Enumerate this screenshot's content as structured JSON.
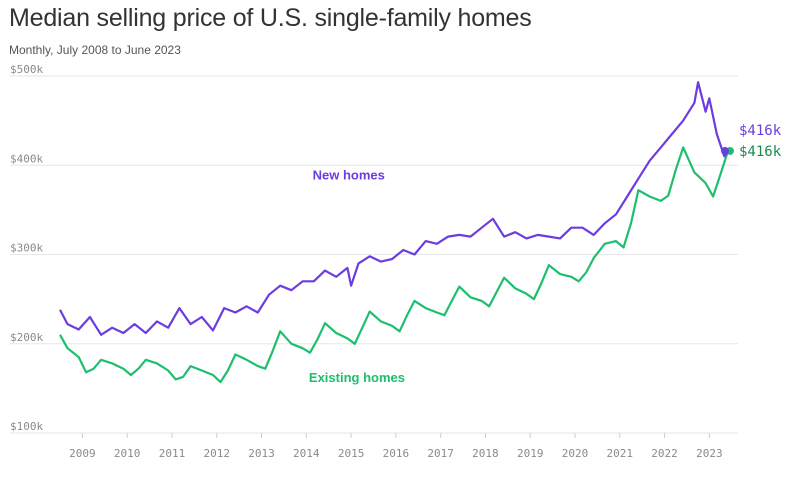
{
  "header": {
    "title": "Median selling price of U.S. single-family homes",
    "subtitle": "Monthly, July 2008 to June 2023"
  },
  "colors": {
    "new": "#6c3ce0",
    "existing": "#1dbf6e",
    "grid": "#e6e6e6",
    "tick": "#8a8a8a"
  },
  "chart_data": {
    "type": "line",
    "title": "Median selling price of U.S. single-family homes",
    "subtitle": "Monthly, July 2008 to June 2023",
    "xlabel": "",
    "ylabel": "",
    "x_range": [
      "2008-07",
      "2023-06"
    ],
    "ylim": [
      100,
      500
    ],
    "y_unit": "$k",
    "y_ticks": [
      100,
      200,
      300,
      400,
      500
    ],
    "y_tick_labels": [
      "$100k",
      "$200k",
      "$300k",
      "$400k",
      "$500k"
    ],
    "x_ticks": [
      "2009",
      "2010",
      "2011",
      "2012",
      "2013",
      "2014",
      "2015",
      "2016",
      "2017",
      "2018",
      "2019",
      "2020",
      "2021",
      "2022",
      "2023"
    ],
    "grid": true,
    "series": [
      {
        "name": "New homes",
        "key": "new",
        "end_label": "$416k",
        "points": [
          [
            "2008-07",
            238
          ],
          [
            "2008-09",
            222
          ],
          [
            "2008-12",
            216
          ],
          [
            "2009-03",
            230
          ],
          [
            "2009-06",
            210
          ],
          [
            "2009-09",
            218
          ],
          [
            "2009-12",
            212
          ],
          [
            "2010-03",
            222
          ],
          [
            "2010-06",
            212
          ],
          [
            "2010-09",
            225
          ],
          [
            "2010-12",
            218
          ],
          [
            "2011-03",
            240
          ],
          [
            "2011-06",
            222
          ],
          [
            "2011-09",
            230
          ],
          [
            "2011-12",
            215
          ],
          [
            "2012-03",
            240
          ],
          [
            "2012-06",
            235
          ],
          [
            "2012-09",
            242
          ],
          [
            "2012-12",
            235
          ],
          [
            "2013-03",
            255
          ],
          [
            "2013-06",
            265
          ],
          [
            "2013-09",
            260
          ],
          [
            "2013-12",
            270
          ],
          [
            "2014-03",
            270
          ],
          [
            "2014-06",
            282
          ],
          [
            "2014-09",
            275
          ],
          [
            "2014-12",
            285
          ],
          [
            "2015-01",
            265
          ],
          [
            "2015-03",
            290
          ],
          [
            "2015-06",
            298
          ],
          [
            "2015-09",
            292
          ],
          [
            "2015-12",
            295
          ],
          [
            "2016-03",
            305
          ],
          [
            "2016-06",
            300
          ],
          [
            "2016-09",
            315
          ],
          [
            "2016-12",
            312
          ],
          [
            "2017-03",
            320
          ],
          [
            "2017-06",
            322
          ],
          [
            "2017-09",
            320
          ],
          [
            "2017-12",
            330
          ],
          [
            "2018-03",
            340
          ],
          [
            "2018-06",
            320
          ],
          [
            "2018-09",
            325
          ],
          [
            "2018-12",
            318
          ],
          [
            "2019-03",
            322
          ],
          [
            "2019-06",
            320
          ],
          [
            "2019-09",
            318
          ],
          [
            "2019-12",
            330
          ],
          [
            "2020-03",
            330
          ],
          [
            "2020-06",
            322
          ],
          [
            "2020-09",
            335
          ],
          [
            "2020-12",
            345
          ],
          [
            "2021-03",
            365
          ],
          [
            "2021-06",
            385
          ],
          [
            "2021-09",
            405
          ],
          [
            "2021-12",
            420
          ],
          [
            "2022-03",
            435
          ],
          [
            "2022-06",
            450
          ],
          [
            "2022-09",
            470
          ],
          [
            "2022-10",
            493
          ],
          [
            "2022-12",
            460
          ],
          [
            "2023-01",
            475
          ],
          [
            "2023-03",
            435
          ],
          [
            "2023-05",
            410
          ],
          [
            "2023-06",
            416
          ]
        ]
      },
      {
        "name": "Existing homes",
        "key": "existing",
        "end_label": "$416k",
        "points": [
          [
            "2008-07",
            210
          ],
          [
            "2008-09",
            195
          ],
          [
            "2008-12",
            185
          ],
          [
            "2009-02",
            168
          ],
          [
            "2009-04",
            172
          ],
          [
            "2009-06",
            182
          ],
          [
            "2009-09",
            178
          ],
          [
            "2009-12",
            172
          ],
          [
            "2010-02",
            165
          ],
          [
            "2010-04",
            172
          ],
          [
            "2010-06",
            182
          ],
          [
            "2010-09",
            178
          ],
          [
            "2010-12",
            170
          ],
          [
            "2011-02",
            160
          ],
          [
            "2011-04",
            163
          ],
          [
            "2011-06",
            175
          ],
          [
            "2011-09",
            170
          ],
          [
            "2011-12",
            165
          ],
          [
            "2012-02",
            157
          ],
          [
            "2012-04",
            170
          ],
          [
            "2012-06",
            188
          ],
          [
            "2012-09",
            182
          ],
          [
            "2012-12",
            175
          ],
          [
            "2013-02",
            172
          ],
          [
            "2013-04",
            192
          ],
          [
            "2013-06",
            214
          ],
          [
            "2013-09",
            200
          ],
          [
            "2013-12",
            195
          ],
          [
            "2014-02",
            190
          ],
          [
            "2014-04",
            205
          ],
          [
            "2014-06",
            223
          ],
          [
            "2014-09",
            212
          ],
          [
            "2014-12",
            206
          ],
          [
            "2015-02",
            200
          ],
          [
            "2015-04",
            218
          ],
          [
            "2015-06",
            236
          ],
          [
            "2015-09",
            225
          ],
          [
            "2015-12",
            220
          ],
          [
            "2016-02",
            214
          ],
          [
            "2016-04",
            232
          ],
          [
            "2016-06",
            248
          ],
          [
            "2016-09",
            240
          ],
          [
            "2016-12",
            235
          ],
          [
            "2017-02",
            232
          ],
          [
            "2017-04",
            248
          ],
          [
            "2017-06",
            264
          ],
          [
            "2017-09",
            252
          ],
          [
            "2017-12",
            248
          ],
          [
            "2018-02",
            242
          ],
          [
            "2018-04",
            258
          ],
          [
            "2018-06",
            274
          ],
          [
            "2018-09",
            262
          ],
          [
            "2018-12",
            256
          ],
          [
            "2019-02",
            250
          ],
          [
            "2019-04",
            268
          ],
          [
            "2019-06",
            288
          ],
          [
            "2019-09",
            278
          ],
          [
            "2019-12",
            275
          ],
          [
            "2020-02",
            270
          ],
          [
            "2020-04",
            280
          ],
          [
            "2020-06",
            296
          ],
          [
            "2020-09",
            312
          ],
          [
            "2020-12",
            315
          ],
          [
            "2021-02",
            308
          ],
          [
            "2021-04",
            335
          ],
          [
            "2021-06",
            372
          ],
          [
            "2021-09",
            365
          ],
          [
            "2021-12",
            360
          ],
          [
            "2022-02",
            366
          ],
          [
            "2022-04",
            395
          ],
          [
            "2022-06",
            420
          ],
          [
            "2022-09",
            392
          ],
          [
            "2022-12",
            380
          ],
          [
            "2023-02",
            365
          ],
          [
            "2023-04",
            390
          ],
          [
            "2023-06",
            416
          ]
        ]
      }
    ],
    "annotations": [
      {
        "series": "new",
        "text": "New homes",
        "at": [
          "2017-01",
          384
        ]
      },
      {
        "series": "existing",
        "text": "Existing homes",
        "at": [
          "2016-12",
          157
        ]
      }
    ]
  }
}
